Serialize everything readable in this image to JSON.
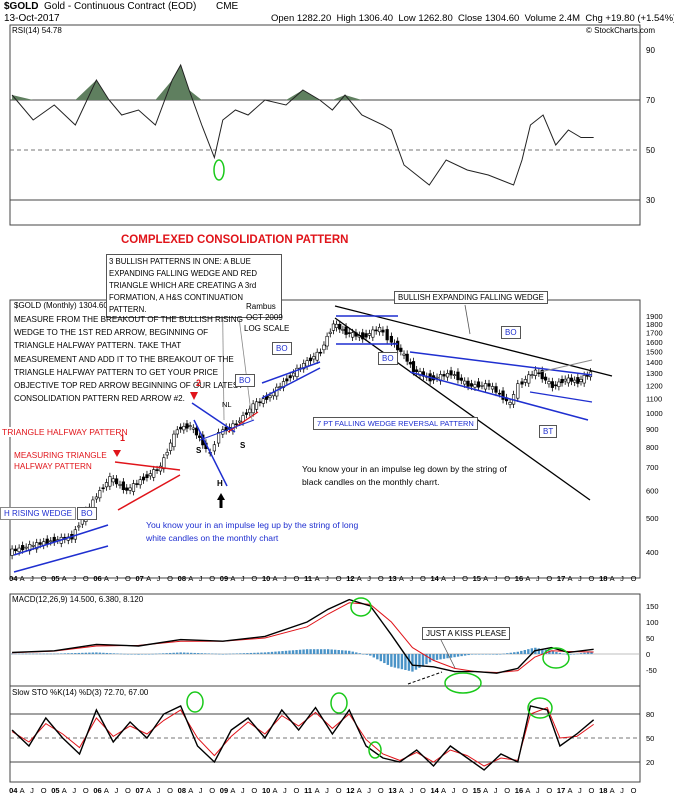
{
  "header": {
    "symbol": "$GOLD",
    "name": "Gold - Continuous Contract (EOD)",
    "exchange": "CME",
    "date": "13-Oct-2017",
    "open_label": "Open",
    "open": "1282.20",
    "high_label": "High",
    "high": "1306.40",
    "low_label": "Low",
    "low": "1262.80",
    "close_label": "Close",
    "close": "1304.60",
    "volume_label": "Volume",
    "volume": "2.4M",
    "chg_label": "Chg",
    "chg": "+19.80 (+1.54%)",
    "chg_arrow": "▲",
    "credit": "© StockCharts.com"
  },
  "chart_data": [
    {
      "type": "line",
      "panel": "rsi",
      "legend": "RSI(14) 54.78",
      "ylim": [
        20,
        100
      ],
      "ticks": [
        30,
        50,
        70,
        90
      ],
      "reference_lines": [
        70,
        50,
        30
      ],
      "series": [
        {
          "name": "RSI(14)",
          "x": [
            2004.0,
            2004.5,
            2005.0,
            2005.5,
            2006.0,
            2006.3,
            2006.6,
            2007.0,
            2007.4,
            2007.8,
            2008.0,
            2008.2,
            2008.5,
            2008.8,
            2009.0,
            2009.3,
            2009.6,
            2010.0,
            2010.5,
            2010.9,
            2011.3,
            2011.6,
            2011.9,
            2012.3,
            2012.8,
            2013.0,
            2013.3,
            2013.6,
            2013.9,
            2014.3,
            2014.8,
            2015.3,
            2015.9,
            2016.1,
            2016.3,
            2016.6,
            2016.9,
            2017.2,
            2017.5,
            2017.8
          ],
          "values": [
            72,
            62,
            68,
            60,
            78,
            70,
            64,
            66,
            60,
            78,
            84,
            74,
            60,
            47,
            62,
            66,
            64,
            70,
            68,
            74,
            70,
            66,
            72,
            64,
            60,
            58,
            44,
            40,
            36,
            46,
            42,
            40,
            36,
            46,
            60,
            64,
            52,
            58,
            55,
            55
          ]
        }
      ]
    },
    {
      "type": "candlestick",
      "panel": "price",
      "legend": "$GOLD (Monthly) 1304.60",
      "scale": "log",
      "ylim": [
        350,
        2000
      ],
      "ticks": [
        400,
        500,
        600,
        700,
        800,
        900,
        1000,
        1100,
        1200,
        1300,
        1400,
        1500,
        1600,
        1700,
        1800,
        1900
      ],
      "x_ticks": [
        "04",
        "A",
        "J",
        "O",
        "05",
        "A",
        "J",
        "O",
        "06",
        "A",
        "J",
        "O",
        "07",
        "A",
        "J",
        "O",
        "08",
        "A",
        "J",
        "O",
        "09",
        "A",
        "J",
        "O",
        "10",
        "A",
        "J",
        "O",
        "11",
        "A",
        "J",
        "O",
        "12",
        "A",
        "J",
        "O",
        "13",
        "A",
        "J",
        "O",
        "14",
        "A",
        "J",
        "O",
        "15",
        "A",
        "J",
        "O",
        "16",
        "A",
        "J",
        "O",
        "17",
        "A",
        "J",
        "O",
        "18",
        "A",
        "J",
        "O"
      ],
      "series": [
        {
          "name": "$GOLD",
          "x": [
            2004.0,
            2004.5,
            2005.0,
            2005.5,
            2006.0,
            2006.4,
            2006.8,
            2007.2,
            2007.6,
            2008.0,
            2008.3,
            2008.6,
            2008.8,
            2009.0,
            2009.4,
            2009.8,
            2010.2,
            2010.6,
            2011.0,
            2011.4,
            2011.7,
            2012.0,
            2012.4,
            2012.8,
            2013.0,
            2013.3,
            2013.6,
            2014.0,
            2014.5,
            2014.9,
            2015.4,
            2015.9,
            2016.1,
            2016.5,
            2016.9,
            2017.2,
            2017.5,
            2017.8
          ],
          "values": [
            400,
            415,
            430,
            440,
            560,
            650,
            600,
            650,
            700,
            900,
            920,
            820,
            760,
            880,
            930,
            1050,
            1120,
            1250,
            1380,
            1500,
            1800,
            1700,
            1650,
            1750,
            1640,
            1500,
            1330,
            1250,
            1300,
            1200,
            1200,
            1060,
            1200,
            1320,
            1190,
            1250,
            1230,
            1304
          ]
        }
      ]
    },
    {
      "type": "line",
      "panel": "macd",
      "legend": "MACD(12,26,9) 14.500, 6.380, 8.120",
      "ylim": [
        -100,
        175
      ],
      "ticks": [
        -50,
        0,
        50,
        100,
        150
      ],
      "series": [
        {
          "name": "MACD",
          "x": [
            2004,
            2005,
            2006,
            2007,
            2008,
            2009,
            2010,
            2011,
            2011.5,
            2012.0,
            2012.5,
            2013.0,
            2013.5,
            2014.0,
            2014.5,
            2015.0,
            2015.5,
            2016.0,
            2016.4,
            2016.8,
            2017.2,
            2017.8
          ],
          "values": [
            5,
            10,
            30,
            25,
            45,
            40,
            55,
            100,
            140,
            170,
            150,
            60,
            -35,
            -40,
            -55,
            -55,
            -60,
            -45,
            10,
            20,
            5,
            14.5
          ]
        },
        {
          "name": "Signal",
          "x": [
            2004,
            2005,
            2006,
            2007,
            2008,
            2009,
            2010,
            2011,
            2011.5,
            2012.0,
            2012.5,
            2013.0,
            2013.5,
            2014.0,
            2014.5,
            2015.0,
            2015.5,
            2016.0,
            2016.4,
            2016.8,
            2017.2,
            2017.8
          ],
          "values": [
            4,
            9,
            25,
            27,
            40,
            40,
            50,
            85,
            125,
            160,
            155,
            100,
            20,
            -20,
            -45,
            -55,
            -58,
            -52,
            -10,
            10,
            8,
            6.38
          ]
        }
      ]
    },
    {
      "type": "line",
      "panel": "stochastic",
      "legend": "Slow STO %K(14) %D(3) 72.70, 67.00",
      "ylim": [
        0,
        100
      ],
      "ticks": [
        20,
        50,
        80
      ],
      "series": [
        {
          "name": "%K(14)",
          "x": [
            2004.0,
            2004.4,
            2004.8,
            2005.2,
            2005.6,
            2006.0,
            2006.4,
            2006.8,
            2007.2,
            2007.6,
            2008.0,
            2008.4,
            2008.8,
            2009.2,
            2009.6,
            2010.0,
            2010.4,
            2010.8,
            2011.2,
            2011.6,
            2012.0,
            2012.4,
            2012.8,
            2013.2,
            2013.6,
            2014.0,
            2014.4,
            2014.8,
            2015.2,
            2015.6,
            2016.0,
            2016.3,
            2016.7,
            2017.0,
            2017.4,
            2017.8
          ],
          "values": [
            60,
            40,
            75,
            50,
            30,
            85,
            45,
            70,
            50,
            80,
            90,
            40,
            20,
            60,
            75,
            50,
            85,
            60,
            88,
            55,
            85,
            40,
            25,
            20,
            35,
            15,
            40,
            25,
            10,
            30,
            20,
            90,
            85,
            40,
            55,
            72.7
          ]
        },
        {
          "name": "%D(3)",
          "x": [
            2004.0,
            2004.4,
            2004.8,
            2005.2,
            2005.6,
            2006.0,
            2006.4,
            2006.8,
            2007.2,
            2007.6,
            2008.0,
            2008.4,
            2008.8,
            2009.2,
            2009.6,
            2010.0,
            2010.4,
            2010.8,
            2011.2,
            2011.6,
            2012.0,
            2012.4,
            2012.8,
            2013.2,
            2013.6,
            2014.0,
            2014.4,
            2014.8,
            2015.2,
            2015.6,
            2016.0,
            2016.3,
            2016.7,
            2017.0,
            2017.4,
            2017.8
          ],
          "values": [
            58,
            45,
            68,
            55,
            38,
            75,
            52,
            65,
            55,
            72,
            85,
            50,
            28,
            52,
            70,
            55,
            78,
            65,
            82,
            62,
            80,
            48,
            30,
            22,
            32,
            20,
            35,
            28,
            15,
            25,
            22,
            80,
            88,
            50,
            52,
            67
          ]
        }
      ]
    }
  ],
  "annotations": {
    "complexed": "COMPLEXED CONSOLIDATION PATTERN",
    "bullish_note": "3 BULLISH PATTERNS IN ONE: A BLUE EXPANDING FALLING WEDGE AND RED TRIANGLE WHICH ARE CREATING A 3rd FORMATION, A H&S CONTINUATION PATTERN.",
    "rambus": "Rambus",
    "rambus_date": "OCT 2009",
    "rambus_scale": "LOG SCALE",
    "measure_note": "MEASURE FROM THE BREAKOUT OF THE BULLISH RISING WEDGE TO THE 1ST RED ARROW, BEGINNING OF TRIANGLE HALFWAY PATTERN. TAKE THAT MEASUREMENT AND ADD IT TO THE BREAKOUT OF THE TRIANGLE HALFWAY PATTERN TO GET YOUR PRICE OBJECTIVE TOP RED ARROW BEGINNING OF OUR LATEST CONSOLIDATION PATTERN RED ARROW #2.",
    "triangle_halfway": "TRIANGLE HALFWAY PATTERN",
    "measuring_triangle": "MEASURING TRIANGLE HALFWAY PATTERN",
    "arrow1": "1",
    "arrow2": "2",
    "rising_wedge": "H RISING WEDGE",
    "bo": "BO",
    "nl": "NL",
    "s": "S",
    "h": "H",
    "bt": "BT",
    "expanding_wedge": "BULLISH EXPANDING FALLING WEDGE",
    "seven_pt": "7 PT FALLING WEDGE REVERSAL PATTERN",
    "impulse_down": "You know your in an impulse leg down by the string of black candles on the monthly charrt.",
    "impulse_up": "You know your in an impulse leg up by the string of long white candles on the monthly chart",
    "kiss": "JUST A KISS PLEASE"
  },
  "colors": {
    "red": "#e0141a",
    "blue": "#1f2fd0",
    "rsi_fill": "#5f7f5f",
    "macd_hist": "#4a93c7",
    "signal": "#e0141a",
    "green": "#19c919"
  }
}
